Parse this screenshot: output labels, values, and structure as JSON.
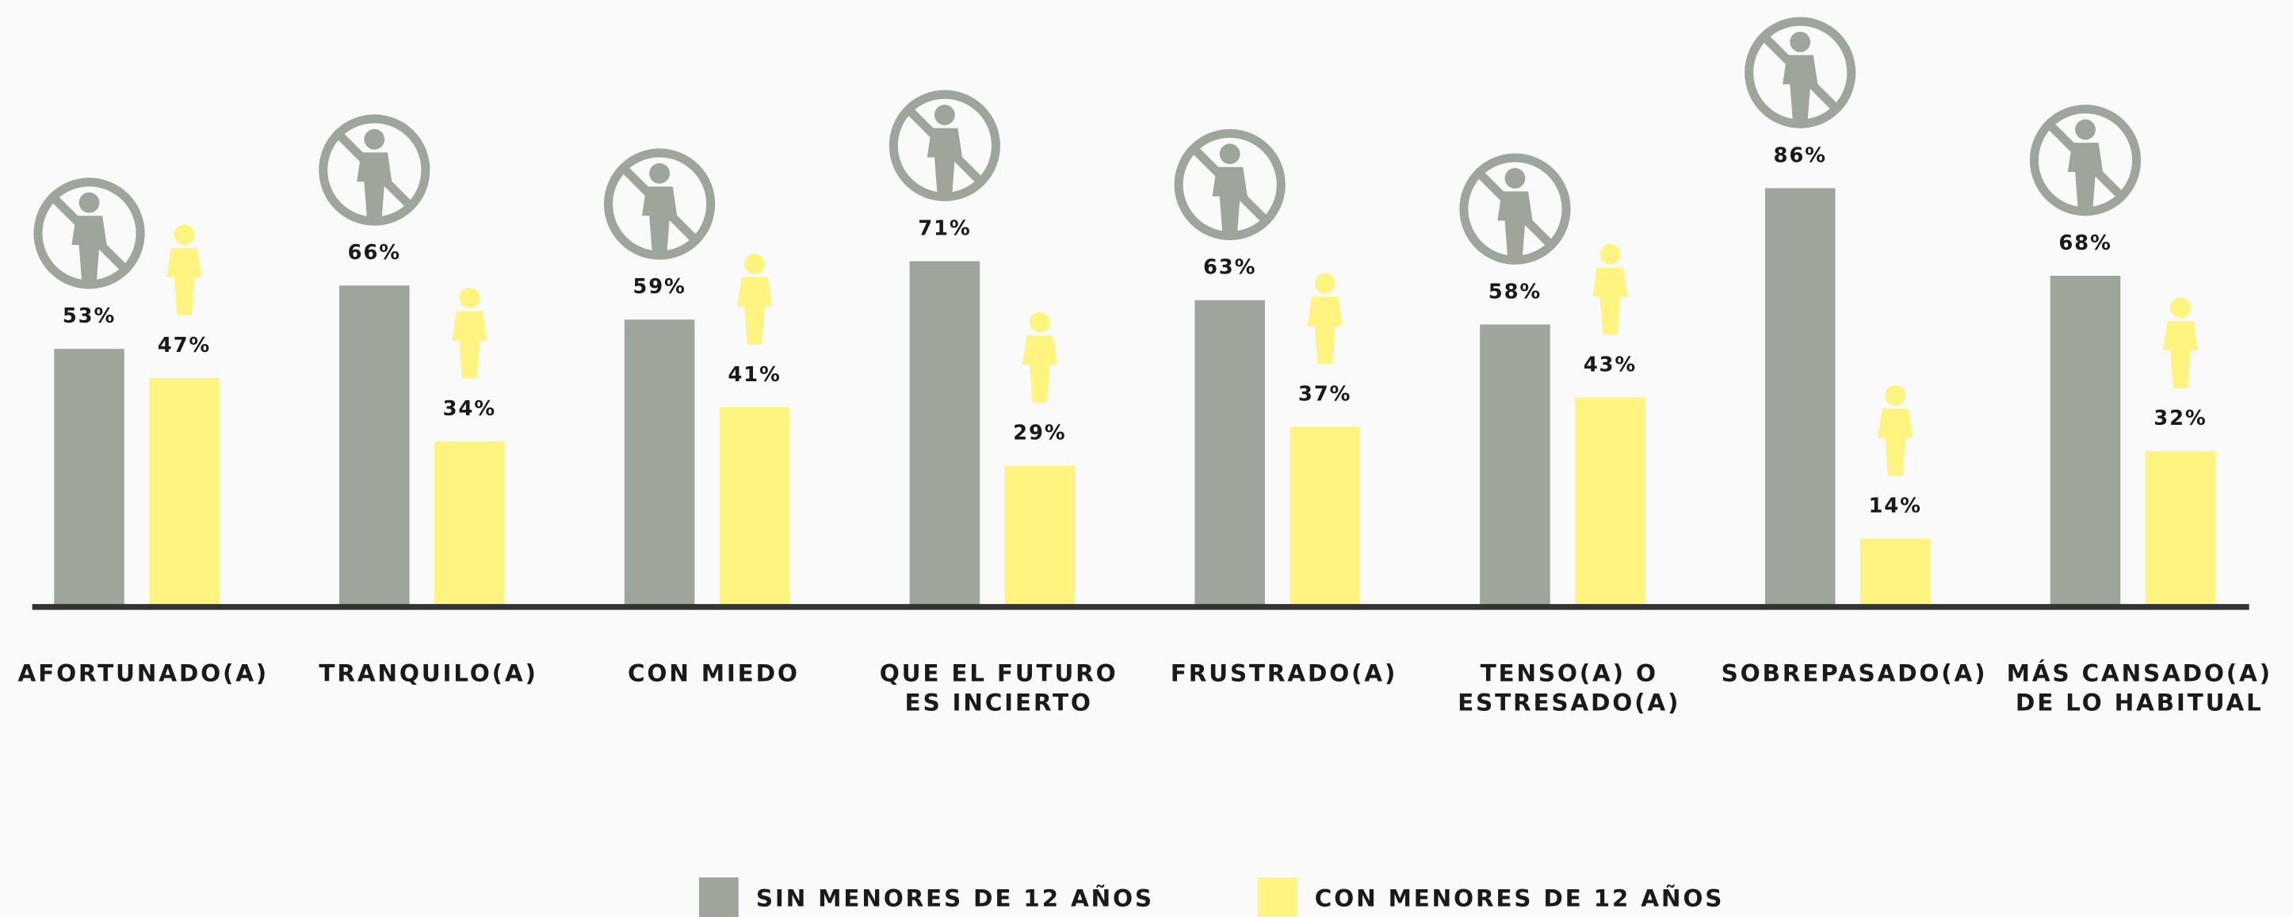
{
  "chart_data": {
    "type": "bar",
    "categories": [
      "AFORTUNADO(A)",
      "TRANQUILO(A)",
      "CON MIEDO",
      "QUE EL FUTURO\nES INCIERTO",
      "FRUSTRADO(A)",
      "TENSO(A) O\nESTRESADO(A)",
      "SOBREPASADO(A)",
      "MÁS CANSADO(A)\nDE LO HABITUAL"
    ],
    "series": [
      {
        "name": "SIN MENORES DE 12 AÑOS",
        "color": "#9ea69c",
        "values": [
          53,
          66,
          59,
          71,
          63,
          58,
          86,
          68
        ],
        "value_labels": [
          "53%",
          "66%",
          "59%",
          "71%",
          "63%",
          "58%",
          "86%",
          "68%"
        ]
      },
      {
        "name": "CON MENORES DE 12 AÑOS",
        "color": "#fff47f",
        "values": [
          47,
          34,
          41,
          29,
          37,
          43,
          14,
          32
        ],
        "value_labels": [
          "47%",
          "34%",
          "41%",
          "29%",
          "37%",
          "43%",
          "14%",
          "32%"
        ]
      }
    ],
    "ylim": [
      0,
      100
    ]
  }
}
